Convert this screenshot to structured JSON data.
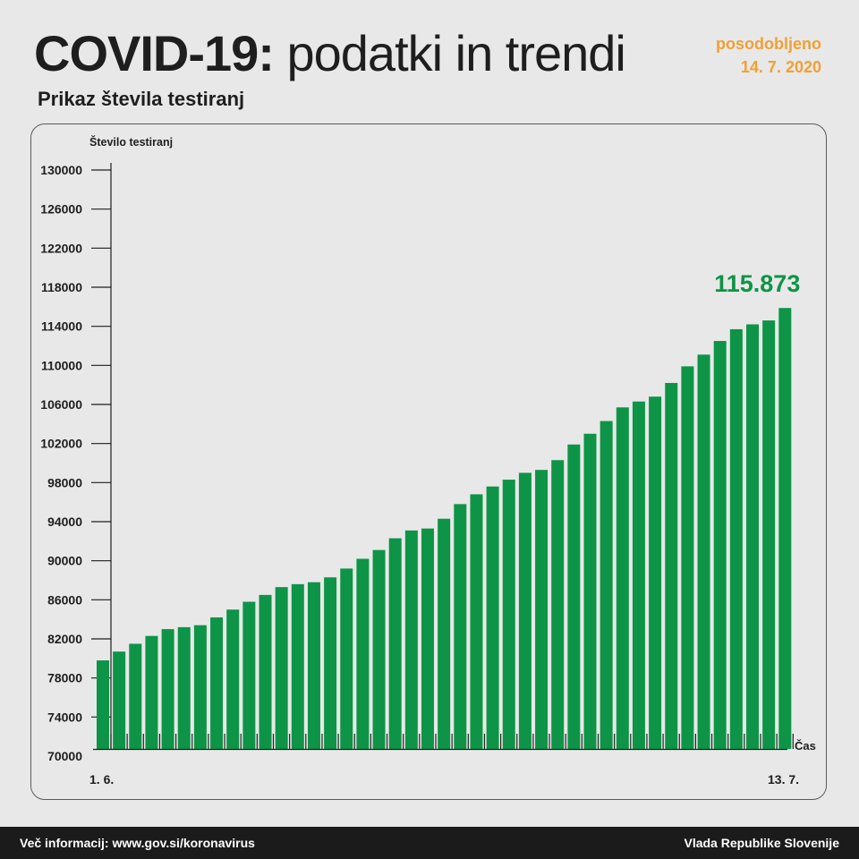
{
  "header": {
    "title_strong": "COVID-19:",
    "title_rest": " podatki in trendi",
    "subtitle": "Prikaz števila testiranj",
    "updated_label": "posodobljeno",
    "updated_date": "14. 7. 2020"
  },
  "footer": {
    "more_info": "Več informacij: www.gov.si/koronavirus",
    "government": "Vlada Republike Slovenije"
  },
  "colors": {
    "bar": "#0e9447",
    "highlight": "#0e9447",
    "accent": "#f0a035",
    "axis": "#1e1e1e"
  },
  "chart_data": {
    "type": "bar",
    "title": "Prikaz števila testiranj",
    "ylabel": "Število testiranj",
    "xlabel": "Čas",
    "ylim": [
      70000,
      130000
    ],
    "yticks": [
      130000,
      126000,
      122000,
      118000,
      114000,
      110000,
      106000,
      102000,
      98000,
      94000,
      90000,
      86000,
      82000,
      78000,
      74000,
      70000
    ],
    "x_tick_labels": [
      "1. 6.",
      "13. 7."
    ],
    "highlight_label": "115.873",
    "grid": false,
    "values": [
      79800,
      80700,
      81500,
      82300,
      83000,
      83200,
      83400,
      84200,
      85000,
      85800,
      86500,
      87300,
      87600,
      87800,
      88300,
      89200,
      90200,
      91100,
      92300,
      93100,
      93300,
      94300,
      95800,
      96800,
      97600,
      98300,
      99000,
      99300,
      100300,
      101900,
      103000,
      104300,
      105700,
      106300,
      106800,
      108200,
      109900,
      111100,
      112500,
      113700,
      114200,
      114600,
      115873
    ]
  }
}
